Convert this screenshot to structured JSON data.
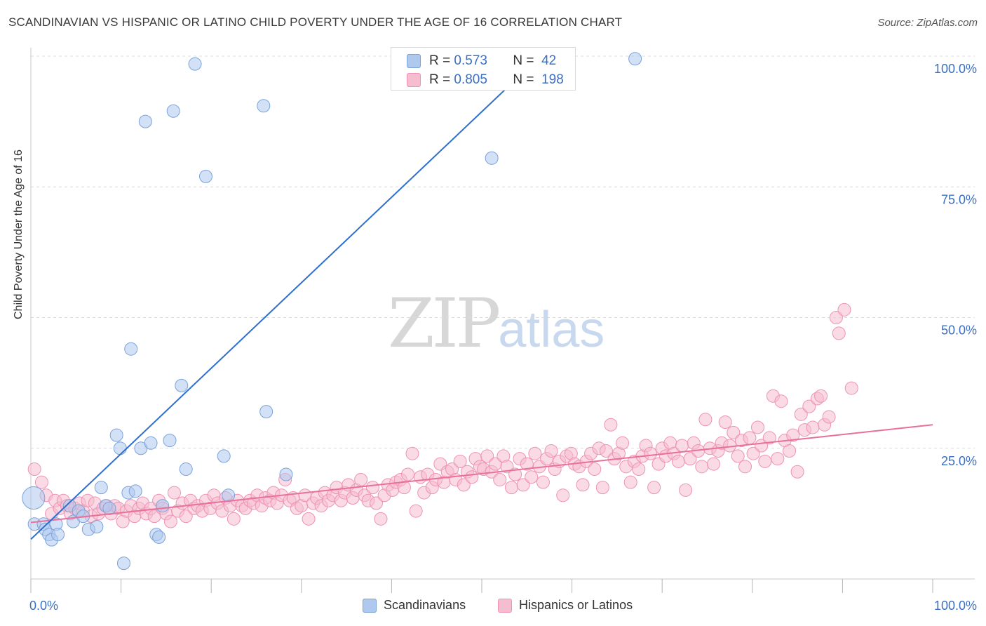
{
  "title": "SCANDINAVIAN VS HISPANIC OR LATINO CHILD POVERTY UNDER THE AGE OF 16 CORRELATION CHART",
  "source": "Source: ZipAtlas.com",
  "watermark": {
    "zip": "ZIP",
    "atlas": "atlas"
  },
  "stats": {
    "scandinavian": {
      "r_label": "R =",
      "r": "0.573",
      "n_label": "N =",
      "n": "42"
    },
    "hispanic": {
      "r_label": "R =",
      "r": "0.805",
      "n_label": "N =",
      "n": "198"
    }
  },
  "legend": {
    "scandinavian": "Scandinavians",
    "hispanic": "Hispanics or Latinos"
  },
  "colors": {
    "scandinavian_fill": "#aec8ee",
    "scandinavian_stroke": "#7aa2db",
    "scandinavian_line": "#2d6fcf",
    "hispanic_fill": "#f6bcd0",
    "hispanic_stroke": "#ee93b3",
    "hispanic_line": "#e8709b",
    "tick_label": "#3a6fc4",
    "grid": "#dcdcdc"
  },
  "chart_data": {
    "type": "scatter",
    "title": "SCANDINAVIAN VS HISPANIC OR LATINO CHILD POVERTY UNDER THE AGE OF 16 CORRELATION CHART",
    "xlabel": "",
    "ylabel": "Child Poverty Under the Age of 16",
    "xlim": [
      0,
      100
    ],
    "ylim": [
      0,
      100
    ],
    "x_tick_labels": [
      "0.0%",
      "100.0%"
    ],
    "y_ticks": [
      25,
      50,
      75,
      100
    ],
    "y_tick_labels": [
      "25.0%",
      "50.0%",
      "75.0%",
      "100.0%"
    ],
    "grid": true,
    "legend_position": "bottom",
    "series": [
      {
        "name": "Scandinavians",
        "r": 0.573,
        "n": 42,
        "trend": {
          "x": [
            0,
            56.5
          ],
          "y": [
            7.6,
            100
          ]
        },
        "points": [
          [
            0.3,
            15.5
          ],
          [
            0.4,
            10.5
          ],
          [
            1.4,
            10.5
          ],
          [
            1.6,
            9.5
          ],
          [
            2.0,
            8.5
          ],
          [
            2.3,
            7.5
          ],
          [
            2.8,
            10.5
          ],
          [
            3.0,
            8.5
          ],
          [
            4.3,
            14.0
          ],
          [
            4.7,
            11.0
          ],
          [
            5.3,
            13.0
          ],
          [
            5.8,
            12.0
          ],
          [
            6.4,
            9.5
          ],
          [
            7.3,
            10.0
          ],
          [
            7.8,
            17.5
          ],
          [
            8.3,
            14.0
          ],
          [
            8.7,
            13.5
          ],
          [
            9.5,
            27.5
          ],
          [
            9.9,
            25.0
          ],
          [
            10.3,
            3.0
          ],
          [
            10.8,
            16.5
          ],
          [
            11.1,
            44.0
          ],
          [
            11.6,
            16.8
          ],
          [
            12.2,
            25.0
          ],
          [
            12.7,
            87.5
          ],
          [
            13.3,
            26.0
          ],
          [
            13.9,
            8.5
          ],
          [
            14.2,
            8.0
          ],
          [
            14.6,
            14.0
          ],
          [
            15.4,
            26.5
          ],
          [
            15.8,
            89.5
          ],
          [
            16.7,
            37.0
          ],
          [
            17.2,
            21.0
          ],
          [
            18.2,
            98.5
          ],
          [
            19.4,
            77.0
          ],
          [
            21.4,
            23.5
          ],
          [
            21.9,
            16.0
          ],
          [
            25.8,
            90.5
          ],
          [
            26.1,
            32.0
          ],
          [
            28.3,
            20.0
          ],
          [
            51.1,
            80.5
          ],
          [
            67.0,
            99.5
          ]
        ]
      },
      {
        "name": "Hispanics or Latinos",
        "r": 0.805,
        "n": 198,
        "trend": {
          "x": [
            0,
            100
          ],
          "y": [
            10.8,
            29.5
          ]
        },
        "points": [
          [
            0.4,
            21.0
          ],
          [
            1.2,
            18.5
          ],
          [
            1.7,
            16.0
          ],
          [
            2.3,
            12.5
          ],
          [
            2.7,
            15.0
          ],
          [
            3.2,
            13.5
          ],
          [
            3.6,
            15.0
          ],
          [
            4.0,
            14.0
          ],
          [
            4.4,
            12.5
          ],
          [
            4.9,
            13.5
          ],
          [
            5.4,
            14.5
          ],
          [
            5.8,
            13.0
          ],
          [
            6.3,
            15.0
          ],
          [
            6.7,
            12.0
          ],
          [
            7.1,
            14.5
          ],
          [
            7.5,
            12.5
          ],
          [
            8.0,
            13.5
          ],
          [
            8.4,
            14.0
          ],
          [
            8.9,
            12.5
          ],
          [
            9.3,
            14.0
          ],
          [
            9.7,
            13.5
          ],
          [
            10.2,
            11.0
          ],
          [
            10.6,
            13.0
          ],
          [
            11.1,
            14.0
          ],
          [
            11.5,
            12.0
          ],
          [
            12.0,
            13.5
          ],
          [
            12.4,
            14.5
          ],
          [
            12.8,
            12.5
          ],
          [
            13.3,
            13.5
          ],
          [
            13.7,
            12.0
          ],
          [
            14.2,
            15.0
          ],
          [
            14.6,
            13.5
          ],
          [
            15.0,
            12.5
          ],
          [
            15.5,
            11.0
          ],
          [
            15.9,
            16.5
          ],
          [
            16.3,
            13.0
          ],
          [
            16.8,
            14.5
          ],
          [
            17.2,
            12.0
          ],
          [
            17.7,
            15.0
          ],
          [
            18.1,
            13.5
          ],
          [
            18.5,
            14.0
          ],
          [
            19.0,
            13.0
          ],
          [
            19.4,
            15.0
          ],
          [
            19.9,
            13.5
          ],
          [
            20.3,
            16.0
          ],
          [
            20.7,
            14.5
          ],
          [
            21.2,
            13.0
          ],
          [
            21.6,
            15.5
          ],
          [
            22.1,
            14.0
          ],
          [
            22.5,
            11.5
          ],
          [
            22.9,
            15.0
          ],
          [
            23.4,
            14.0
          ],
          [
            23.8,
            13.5
          ],
          [
            24.3,
            15.0
          ],
          [
            24.7,
            14.5
          ],
          [
            25.1,
            16.0
          ],
          [
            25.6,
            14.0
          ],
          [
            26.0,
            15.5
          ],
          [
            26.5,
            15.0
          ],
          [
            26.9,
            16.5
          ],
          [
            27.3,
            14.5
          ],
          [
            27.8,
            16.0
          ],
          [
            28.2,
            19.0
          ],
          [
            28.7,
            15.0
          ],
          [
            29.1,
            15.5
          ],
          [
            29.5,
            13.5
          ],
          [
            30.0,
            14.0
          ],
          [
            30.4,
            16.0
          ],
          [
            30.8,
            11.5
          ],
          [
            31.3,
            14.5
          ],
          [
            31.7,
            15.5
          ],
          [
            32.2,
            14.0
          ],
          [
            32.6,
            16.5
          ],
          [
            33.0,
            15.0
          ],
          [
            33.5,
            16.0
          ],
          [
            33.9,
            17.5
          ],
          [
            34.4,
            15.0
          ],
          [
            34.8,
            16.5
          ],
          [
            35.2,
            18.0
          ],
          [
            35.7,
            15.5
          ],
          [
            36.1,
            17.0
          ],
          [
            36.6,
            19.0
          ],
          [
            37.0,
            16.0
          ],
          [
            37.4,
            15.0
          ],
          [
            37.9,
            17.5
          ],
          [
            38.3,
            14.5
          ],
          [
            38.8,
            11.5
          ],
          [
            39.2,
            16.0
          ],
          [
            39.6,
            18.0
          ],
          [
            40.1,
            17.0
          ],
          [
            40.5,
            18.5
          ],
          [
            41.0,
            19.0
          ],
          [
            41.4,
            17.5
          ],
          [
            41.8,
            20.0
          ],
          [
            42.3,
            24.0
          ],
          [
            42.7,
            13.0
          ],
          [
            43.2,
            19.5
          ],
          [
            43.6,
            16.5
          ],
          [
            44.0,
            20.0
          ],
          [
            44.5,
            17.5
          ],
          [
            44.9,
            19.0
          ],
          [
            45.4,
            22.0
          ],
          [
            45.8,
            18.5
          ],
          [
            46.2,
            20.5
          ],
          [
            46.7,
            21.0
          ],
          [
            47.1,
            19.0
          ],
          [
            47.6,
            22.5
          ],
          [
            48.0,
            18.0
          ],
          [
            48.4,
            20.5
          ],
          [
            48.9,
            19.5
          ],
          [
            49.3,
            23.0
          ],
          [
            49.8,
            21.5
          ],
          [
            50.2,
            21.0
          ],
          [
            50.6,
            23.5
          ],
          [
            51.1,
            20.5
          ],
          [
            51.5,
            22.0
          ],
          [
            52.0,
            19.0
          ],
          [
            52.4,
            23.5
          ],
          [
            52.8,
            21.5
          ],
          [
            53.3,
            17.5
          ],
          [
            53.7,
            20.0
          ],
          [
            54.2,
            23.0
          ],
          [
            54.6,
            18.0
          ],
          [
            55.0,
            22.0
          ],
          [
            55.5,
            19.5
          ],
          [
            55.9,
            24.0
          ],
          [
            56.4,
            21.5
          ],
          [
            56.8,
            18.5
          ],
          [
            57.2,
            23.0
          ],
          [
            57.7,
            24.5
          ],
          [
            58.1,
            21.0
          ],
          [
            58.6,
            22.5
          ],
          [
            59.0,
            16.0
          ],
          [
            59.4,
            23.5
          ],
          [
            59.9,
            24.0
          ],
          [
            60.3,
            22.0
          ],
          [
            60.8,
            21.5
          ],
          [
            61.2,
            18.0
          ],
          [
            61.6,
            22.5
          ],
          [
            62.1,
            24.0
          ],
          [
            62.5,
            21.0
          ],
          [
            63.0,
            25.0
          ],
          [
            63.4,
            17.5
          ],
          [
            63.8,
            24.5
          ],
          [
            64.3,
            29.5
          ],
          [
            64.7,
            23.0
          ],
          [
            65.2,
            24.0
          ],
          [
            65.6,
            26.0
          ],
          [
            66.0,
            21.5
          ],
          [
            66.5,
            18.5
          ],
          [
            66.9,
            22.5
          ],
          [
            67.4,
            21.0
          ],
          [
            67.8,
            23.5
          ],
          [
            68.2,
            25.5
          ],
          [
            68.7,
            24.0
          ],
          [
            69.1,
            17.5
          ],
          [
            69.6,
            22.0
          ],
          [
            70.0,
            25.0
          ],
          [
            70.4,
            23.5
          ],
          [
            70.9,
            26.0
          ],
          [
            71.3,
            24.0
          ],
          [
            71.8,
            22.5
          ],
          [
            72.2,
            25.5
          ],
          [
            72.6,
            17.0
          ],
          [
            73.1,
            23.0
          ],
          [
            73.5,
            26.0
          ],
          [
            74.0,
            24.5
          ],
          [
            74.4,
            21.5
          ],
          [
            74.8,
            30.5
          ],
          [
            75.3,
            25.0
          ],
          [
            75.7,
            22.0
          ],
          [
            76.2,
            24.5
          ],
          [
            76.6,
            26.0
          ],
          [
            77.0,
            30.0
          ],
          [
            77.5,
            25.5
          ],
          [
            77.9,
            28.0
          ],
          [
            78.4,
            23.5
          ],
          [
            78.8,
            26.5
          ],
          [
            79.2,
            21.5
          ],
          [
            79.7,
            27.0
          ],
          [
            80.1,
            24.0
          ],
          [
            80.6,
            29.0
          ],
          [
            81.0,
            25.5
          ],
          [
            81.4,
            22.5
          ],
          [
            81.9,
            27.0
          ],
          [
            82.3,
            35.0
          ],
          [
            82.8,
            23.0
          ],
          [
            83.2,
            34.0
          ],
          [
            83.6,
            26.5
          ],
          [
            84.1,
            24.5
          ],
          [
            84.5,
            27.5
          ],
          [
            85.0,
            20.5
          ],
          [
            85.4,
            31.5
          ],
          [
            85.8,
            28.5
          ],
          [
            86.3,
            33.0
          ],
          [
            86.7,
            29.0
          ],
          [
            87.2,
            34.5
          ],
          [
            87.6,
            35.0
          ],
          [
            88.0,
            29.5
          ],
          [
            88.5,
            31.0
          ],
          [
            89.3,
            50.0
          ],
          [
            89.6,
            47.0
          ],
          [
            90.2,
            51.5
          ],
          [
            91.0,
            36.5
          ]
        ]
      }
    ]
  }
}
